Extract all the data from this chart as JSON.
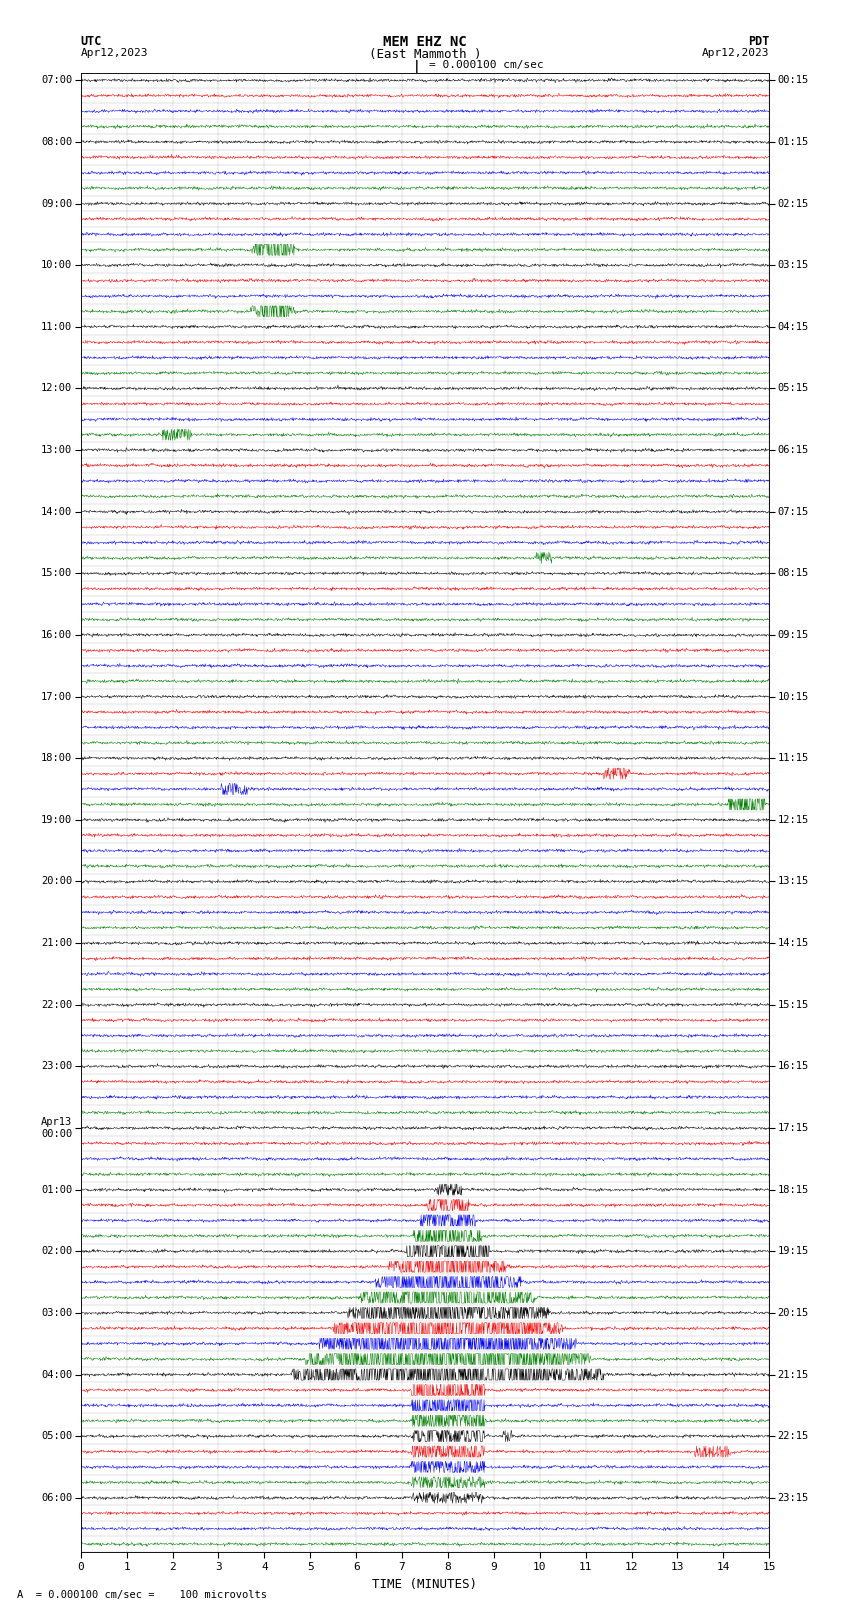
{
  "title_line1": "MEM EHZ NC",
  "title_line2": "(East Mammoth )",
  "scale_label": "= 0.000100 cm/sec",
  "bottom_label": "A  = 0.000100 cm/sec =    100 microvolts",
  "xlabel": "TIME (MINUTES)",
  "left_header": "UTC",
  "left_date": "Apr12,2023",
  "right_header": "PDT",
  "right_date": "Apr12,2023",
  "left_hour_labels": [
    "07:00",
    "08:00",
    "09:00",
    "10:00",
    "11:00",
    "12:00",
    "13:00",
    "14:00",
    "15:00",
    "16:00",
    "17:00",
    "18:00",
    "19:00",
    "20:00",
    "21:00",
    "22:00",
    "23:00",
    "Apr13\n00:00",
    "01:00",
    "02:00",
    "03:00",
    "04:00",
    "05:00",
    "06:00"
  ],
  "right_hour_labels": [
    "00:15",
    "01:15",
    "02:15",
    "03:15",
    "04:15",
    "05:15",
    "06:15",
    "07:15",
    "08:15",
    "09:15",
    "10:15",
    "11:15",
    "12:15",
    "13:15",
    "14:15",
    "15:15",
    "16:15",
    "17:15",
    "18:15",
    "19:15",
    "20:15",
    "21:15",
    "22:15",
    "23:15"
  ],
  "trace_colors": [
    "black",
    "red",
    "blue",
    "green"
  ],
  "bg_color": "#ffffff",
  "grid_color": "#bbbbbb",
  "num_rows": 96,
  "minutes": 15,
  "noise_seed": 42,
  "row_amp": 0.38
}
